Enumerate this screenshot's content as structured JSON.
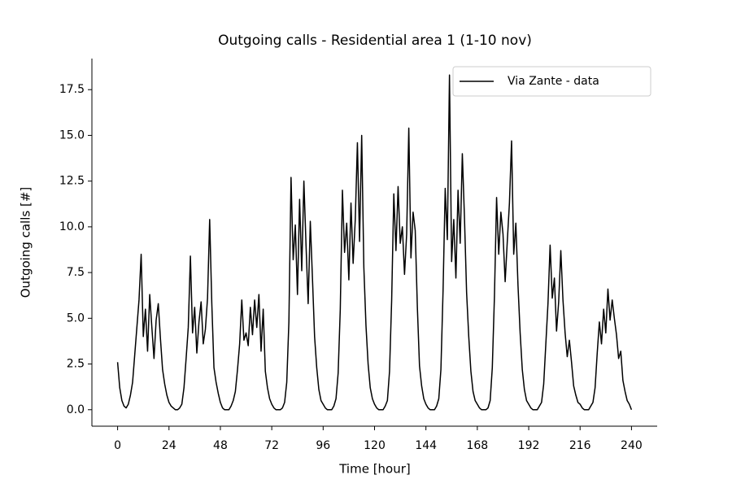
{
  "chart_data": {
    "type": "line",
    "title": "Outgoing calls - Residential area 1 (1-10 nov)",
    "x_label": "Time [hour]",
    "y_label": "Outgoing calls [#]",
    "legend_position": "upper right",
    "xlim": [
      -12,
      252
    ],
    "ylim": [
      -0.9,
      19.2
    ],
    "xticks": [
      0,
      24,
      48,
      72,
      96,
      120,
      144,
      168,
      192,
      216,
      240
    ],
    "yticks": [
      {
        "value": 0,
        "label": "0.0"
      },
      2.5,
      {
        "value": 5,
        "label": "5.0"
      },
      7.5,
      {
        "value": 10,
        "label": "10.0"
      },
      12.5,
      {
        "value": 15,
        "label": "15.0"
      },
      17.5
    ],
    "x": [
      0,
      1,
      2,
      3,
      4,
      5,
      6,
      7,
      8,
      9,
      10,
      11,
      12,
      13,
      14,
      15,
      16,
      17,
      18,
      19,
      20,
      21,
      22,
      23,
      24,
      25,
      26,
      27,
      28,
      29,
      30,
      31,
      32,
      33,
      34,
      35,
      36,
      37,
      38,
      39,
      40,
      41,
      42,
      43,
      44,
      45,
      46,
      47,
      48,
      49,
      50,
      51,
      52,
      53,
      54,
      55,
      56,
      57,
      58,
      59,
      60,
      61,
      62,
      63,
      64,
      65,
      66,
      67,
      68,
      69,
      70,
      71,
      72,
      73,
      74,
      75,
      76,
      77,
      78,
      79,
      80,
      81,
      82,
      83,
      84,
      85,
      86,
      87,
      88,
      89,
      90,
      91,
      92,
      93,
      94,
      95,
      96,
      97,
      98,
      99,
      100,
      101,
      102,
      103,
      104,
      105,
      106,
      107,
      108,
      109,
      110,
      111,
      112,
      113,
      114,
      115,
      116,
      117,
      118,
      119,
      120,
      121,
      122,
      123,
      124,
      125,
      126,
      127,
      128,
      129,
      130,
      131,
      132,
      133,
      134,
      135,
      136,
      137,
      138,
      139,
      140,
      141,
      142,
      143,
      144,
      145,
      146,
      147,
      148,
      149,
      150,
      151,
      152,
      153,
      154,
      155,
      156,
      157,
      158,
      159,
      160,
      161,
      162,
      163,
      164,
      165,
      166,
      167,
      168,
      169,
      170,
      171,
      172,
      173,
      174,
      175,
      176,
      177,
      178,
      179,
      180,
      181,
      182,
      183,
      184,
      185,
      186,
      187,
      188,
      189,
      190,
      191,
      192,
      193,
      194,
      195,
      196,
      197,
      198,
      199,
      200,
      201,
      202,
      203,
      204,
      205,
      206,
      207,
      208,
      209,
      210,
      211,
      212,
      213,
      214,
      215,
      216,
      217,
      218,
      219,
      220,
      221,
      222,
      223,
      224,
      225,
      226,
      227,
      228,
      229,
      230,
      231,
      232,
      233,
      234,
      235,
      236,
      237,
      238,
      239,
      240
    ],
    "series": [
      {
        "name": "Via Zante - data",
        "color": "#000000",
        "values": [
          2.6,
          1.2,
          0.5,
          0.2,
          0.1,
          0.3,
          0.8,
          1.5,
          3.0,
          4.5,
          6.0,
          8.5,
          4.0,
          5.5,
          3.2,
          6.3,
          4.5,
          2.8,
          4.9,
          5.8,
          3.9,
          2.2,
          1.4,
          0.8,
          0.4,
          0.2,
          0.1,
          0,
          0,
          0.1,
          0.3,
          1.2,
          2.8,
          4.5,
          8.4,
          4.2,
          5.6,
          3.1,
          4.8,
          5.9,
          3.6,
          4.4,
          6.1,
          10.4,
          5.8,
          2.3,
          1.5,
          0.9,
          0.4,
          0.1,
          0,
          0,
          0,
          0.2,
          0.5,
          1.0,
          2.2,
          3.6,
          6.0,
          3.8,
          4.2,
          3.5,
          5.6,
          4.1,
          6.0,
          4.5,
          6.3,
          3.2,
          5.5,
          2.1,
          1.2,
          0.6,
          0.3,
          0.1,
          0,
          0,
          0,
          0.1,
          0.4,
          1.5,
          4.8,
          12.7,
          8.2,
          10.1,
          6.3,
          11.5,
          7.6,
          12.5,
          9.0,
          5.8,
          10.3,
          7.2,
          4.0,
          2.3,
          1.1,
          0.5,
          0.3,
          0.1,
          0,
          0,
          0,
          0.2,
          0.6,
          2.0,
          5.5,
          12.0,
          8.6,
          10.2,
          7.1,
          11.3,
          8.0,
          10.4,
          14.6,
          9.2,
          15.0,
          7.8,
          4.6,
          2.5,
          1.2,
          0.6,
          0.3,
          0.1,
          0,
          0,
          0,
          0.2,
          0.5,
          2.1,
          6.0,
          11.8,
          8.7,
          12.2,
          9.1,
          10.0,
          7.4,
          9.6,
          15.4,
          8.3,
          10.8,
          9.8,
          5.6,
          2.4,
          1.3,
          0.6,
          0.3,
          0.1,
          0,
          0,
          0,
          0.2,
          0.6,
          2.2,
          6.5,
          12.1,
          9.3,
          18.3,
          8.1,
          10.4,
          7.2,
          12.0,
          9.1,
          14.0,
          10.5,
          6.4,
          4.0,
          2.1,
          1.0,
          0.5,
          0.3,
          0.1,
          0,
          0,
          0,
          0.1,
          0.5,
          2.3,
          6.2,
          11.6,
          8.5,
          10.8,
          9.6,
          7.0,
          9.2,
          11.3,
          14.7,
          8.5,
          10.2,
          6.8,
          4.2,
          2.2,
          1.1,
          0.5,
          0.3,
          0.1,
          0,
          0,
          0,
          0.2,
          0.4,
          1.4,
          3.6,
          5.8,
          9.0,
          6.1,
          7.2,
          4.3,
          5.9,
          8.7,
          6.0,
          4.2,
          2.9,
          3.8,
          2.6,
          1.3,
          0.8,
          0.4,
          0.3,
          0.1,
          0,
          0,
          0,
          0.2,
          0.4,
          1.2,
          3.1,
          4.8,
          3.6,
          5.5,
          4.2,
          6.6,
          4.9,
          6.0,
          5.0,
          4.1,
          2.8,
          3.2,
          1.6,
          1.0,
          0.5,
          0.3,
          0
        ]
      }
    ]
  }
}
